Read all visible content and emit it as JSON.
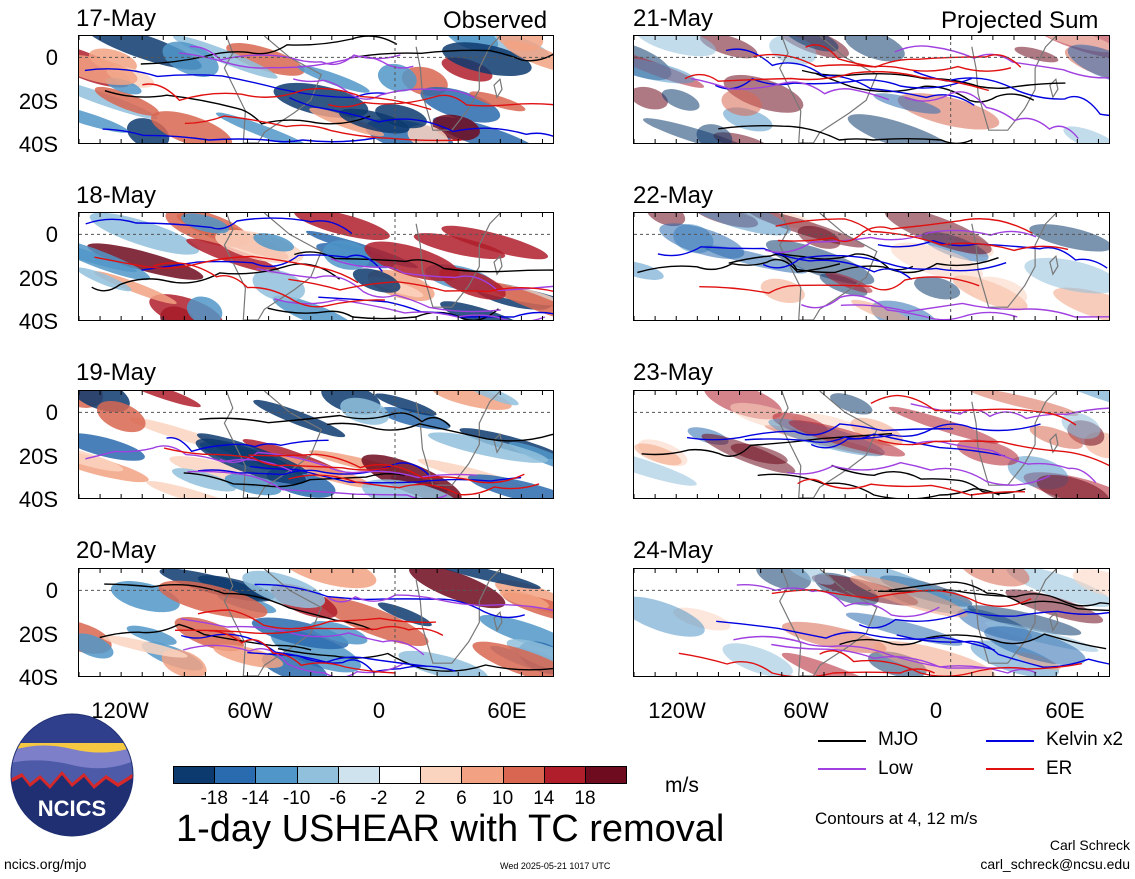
{
  "chart_data": {
    "type": "heatmap",
    "title": "1-day USHEAR with TC removal",
    "units": "m/s",
    "columns": [
      {
        "heading": "Observed",
        "dates": [
          "17-May",
          "18-May",
          "19-May",
          "20-May"
        ]
      },
      {
        "heading": "Projected Sum",
        "dates": [
          "21-May",
          "22-May",
          "23-May",
          "24-May"
        ]
      }
    ],
    "y_ticks": [
      "0",
      "20S",
      "40S"
    ],
    "x_ticks": [
      "120W",
      "60W",
      "0",
      "60E"
    ],
    "x_range_deg": [
      -150,
      75
    ],
    "y_range_deg": [
      -40,
      10
    ],
    "colorbar_labels": [
      "-18",
      "-14",
      "-10",
      "-6",
      "-2",
      "2",
      "6",
      "10",
      "14",
      "18"
    ],
    "colorbar_colors": [
      "#0d3a6e",
      "#2a6aae",
      "#5096c8",
      "#90c0dc",
      "#cfe3ef",
      "#ffffff",
      "#fbd4c0",
      "#f2a282",
      "#d86650",
      "#b01e2c",
      "#6e0b1e"
    ],
    "contour_note": "Contours at 4, 12 m/s",
    "legend": [
      {
        "label": "MJO",
        "color": "#000000"
      },
      {
        "label": "Kelvin x2",
        "color": "#0000e0"
      },
      {
        "label": "Low",
        "color": "#a040e0"
      },
      {
        "label": "ER",
        "color": "#e01010"
      }
    ],
    "grid": "dashed equator and prime meridian"
  },
  "branding": {
    "logo_text": "NCICS",
    "site": "ncics.org/mjo",
    "timestamp": "Wed 2025-05-21 1017 UTC",
    "author": "Carl Schreck",
    "email": "carl_schreck@ncsu.edu"
  }
}
